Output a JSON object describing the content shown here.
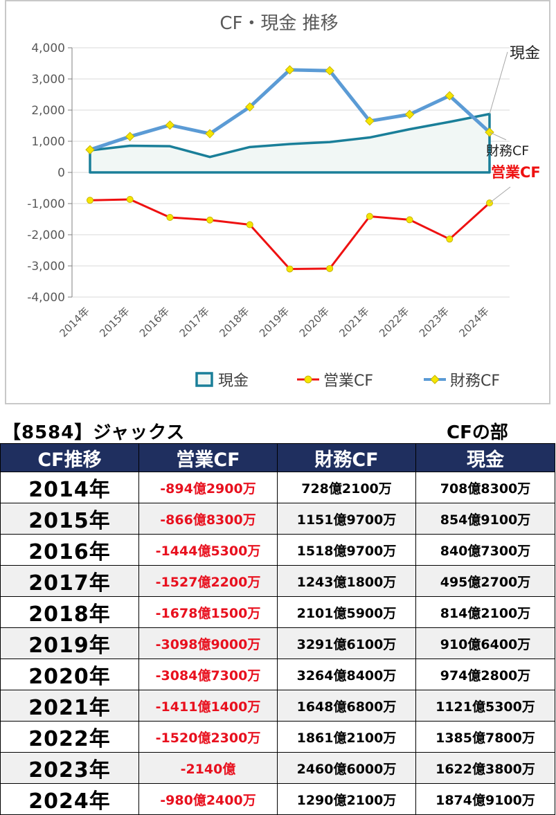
{
  "chart_data": {
    "type": "line",
    "title": "CF・現金 推移",
    "categories": [
      "2014年",
      "2015年",
      "2016年",
      "2017年",
      "2018年",
      "2019年",
      "2020年",
      "2021年",
      "2022年",
      "2023年",
      "2024年"
    ],
    "ylim": [
      -4000,
      4000
    ],
    "yticks": [
      4000,
      3000,
      2000,
      1000,
      0,
      -1000,
      -2000,
      -3000,
      -4000
    ],
    "ytick_labels": [
      "4,000",
      "3,000",
      "2,000",
      "1,000",
      "0",
      "-1,000",
      "-2,000",
      "-3,000",
      "-4,000"
    ],
    "grid": true,
    "legend_position": "bottom",
    "series": [
      {
        "name": "現金",
        "style": "area",
        "color": "#1a7f99",
        "values": [
          708.83,
          854.91,
          840.73,
          495.27,
          814.21,
          910.64,
          974.28,
          1121.53,
          1385.78,
          1622.38,
          1874.91
        ]
      },
      {
        "name": "営業CF",
        "style": "line-marker",
        "color": "#ee1111",
        "marker_color": "#f5e600",
        "values": [
          -894.29,
          -866.83,
          -1444.53,
          -1527.22,
          -1678.15,
          -3098.9,
          -3084.73,
          -1411.14,
          -1520.23,
          -2140,
          -980.24
        ]
      },
      {
        "name": "財務CF",
        "style": "line-marker",
        "color": "#5b9bd5",
        "marker_color": "#f5e600",
        "values": [
          728.21,
          1151.97,
          1518.97,
          1243.18,
          2101.59,
          3291.61,
          3264.84,
          1648.68,
          1861.21,
          2460.6,
          1290.21
        ]
      }
    ],
    "annotations": [
      {
        "text": "現金",
        "series": "現金",
        "color": "#222222"
      },
      {
        "text": "財務CF",
        "series": "財務CF",
        "color": "#222222"
      },
      {
        "text": "営業CF",
        "series": "営業CF",
        "color": "#ee1111"
      }
    ]
  },
  "company_title": "【8584】ジャックス",
  "section_label": "CFの部",
  "table": {
    "headers": [
      "CF推移",
      "営業CF",
      "財務CF",
      "現金"
    ],
    "rows": [
      [
        "2014年",
        "-894億2900万",
        "728億2100万",
        "708億8300万"
      ],
      [
        "2015年",
        "-866億8300万",
        "1151億9700万",
        "854億9100万"
      ],
      [
        "2016年",
        "-1444億5300万",
        "1518億9700万",
        "840億7300万"
      ],
      [
        "2017年",
        "-1527億2200万",
        "1243億1800万",
        "495億2700万"
      ],
      [
        "2018年",
        "-1678億1500万",
        "2101億5900万",
        "814億2100万"
      ],
      [
        "2019年",
        "-3098億9000万",
        "3291億6100万",
        "910億6400万"
      ],
      [
        "2020年",
        "-3084億7300万",
        "3264億8400万",
        "974億2800万"
      ],
      [
        "2021年",
        "-1411億1400万",
        "1648億6800万",
        "1121億5300万"
      ],
      [
        "2022年",
        "-1520億2300万",
        "1861億2100万",
        "1385億7800万"
      ],
      [
        "2023年",
        "-2140億",
        "2460億6000万",
        "1622億3800万"
      ],
      [
        "2024年",
        "-980億2400万",
        "1290億2100万",
        "1874億9100万"
      ]
    ]
  }
}
